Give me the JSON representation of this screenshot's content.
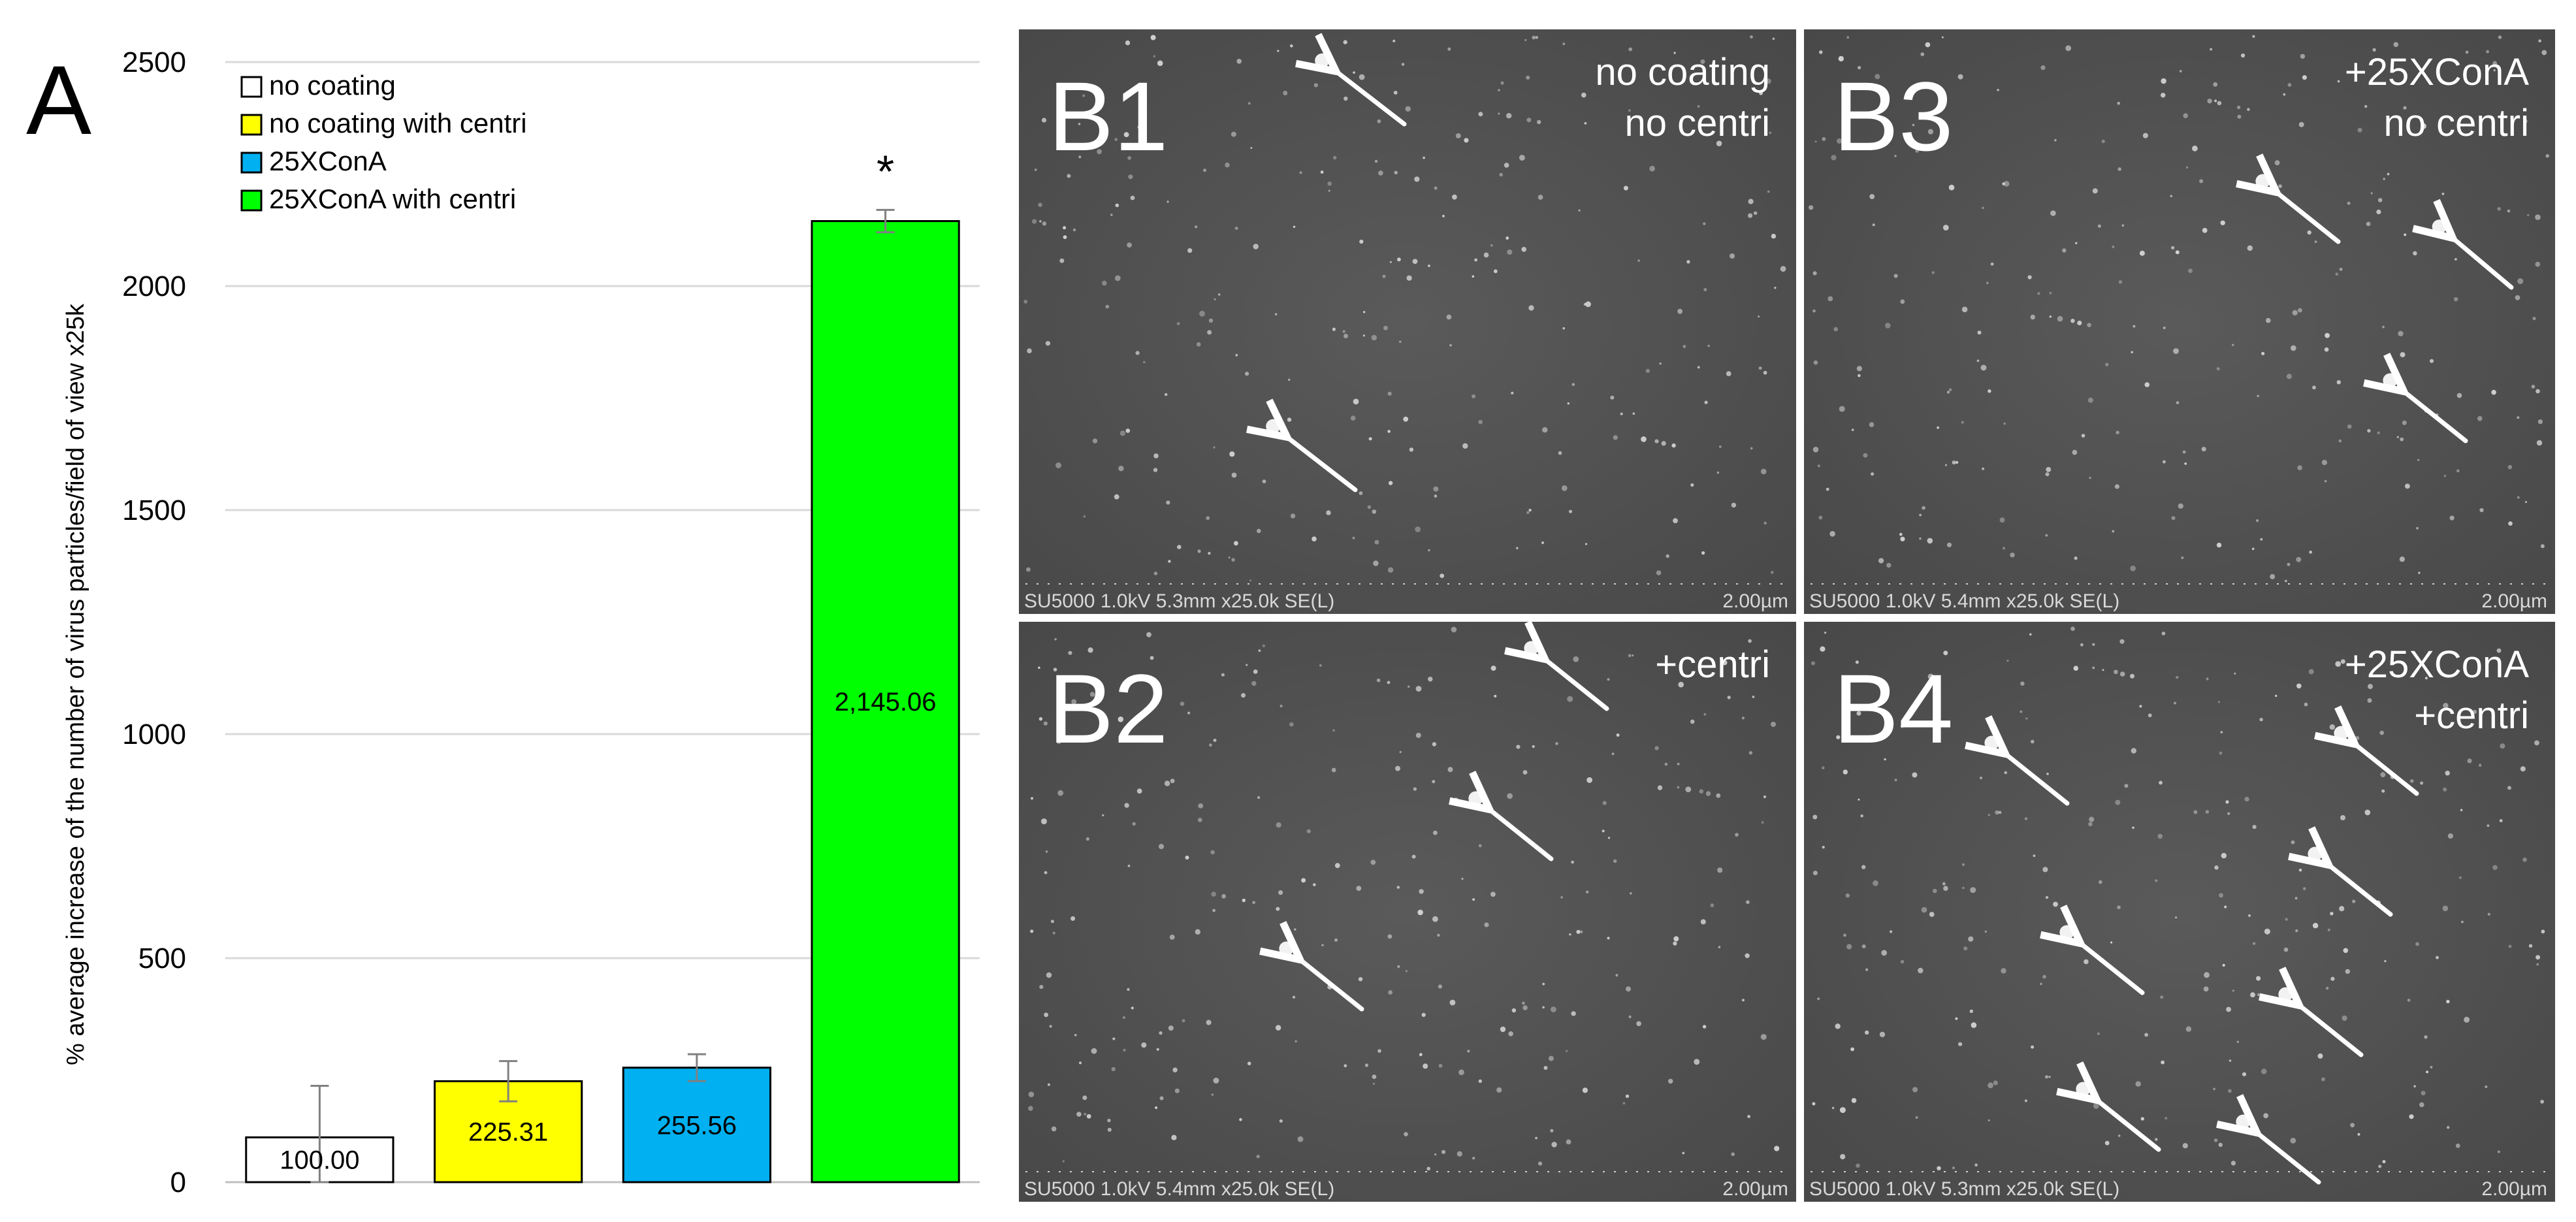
{
  "panel_label": "A",
  "chart_data": {
    "type": "bar",
    "title": "",
    "xlabel": "",
    "ylabel": "% average increase of the number of virus particles/field of view x25k",
    "ylim": [
      0,
      2500
    ],
    "yticks": [
      0,
      500,
      1000,
      1500,
      2000,
      2500
    ],
    "grid": true,
    "legend_position": "top-left",
    "categories": [
      "no coating",
      "no coating with centri",
      "25XConA",
      "25XConA with centri"
    ],
    "values": [
      100.0,
      225.31,
      255.56,
      2145.06
    ],
    "errors": [
      115,
      45,
      30,
      25
    ],
    "value_labels": [
      "100.00",
      "225.31",
      "255.56",
      "2,145.06"
    ],
    "colors": [
      "#ffffff",
      "#ffff00",
      "#00b0f0",
      "#00ff00"
    ],
    "significance": {
      "index": 3,
      "mark": "*"
    }
  },
  "micrographs": [
    {
      "label": "B1",
      "caption": [
        "no coating",
        "no centri"
      ],
      "footer_left": "SU5000 1.0kV 5.3mm x25.0k SE(L)",
      "footer_right": "2.00µm"
    },
    {
      "label": "B3",
      "caption": [
        "+25XConA",
        "no centri"
      ],
      "footer_left": "SU5000 1.0kV 5.4mm x25.0k SE(L)",
      "footer_right": "2.00µm"
    },
    {
      "label": "B2",
      "caption": [
        "+centri"
      ],
      "footer_left": "SU5000 1.0kV 5.4mm x25.0k SE(L)",
      "footer_right": "2.00µm"
    },
    {
      "label": "B4",
      "caption": [
        "+25XConA",
        "+centri"
      ],
      "footer_left": "SU5000 1.0kV 5.3mm x25.0k SE(L)",
      "footer_right": "2.00µm"
    }
  ]
}
